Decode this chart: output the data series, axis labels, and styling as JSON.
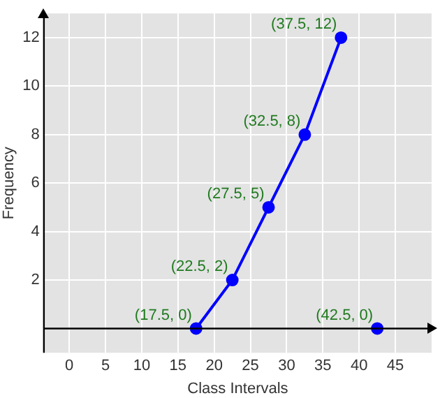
{
  "chart_data": {
    "type": "line",
    "xlabel": "Class Intervals",
    "ylabel": "Frequency",
    "xlim": [
      -3.5,
      50
    ],
    "xticks": [
      0,
      5,
      10,
      15,
      20,
      25,
      30,
      35,
      40,
      45
    ],
    "ylim": [
      -1,
      13
    ],
    "yticks": [
      {
        "value": 0,
        "label": null
      },
      2,
      4,
      6,
      8,
      10,
      12
    ],
    "grid": true,
    "marker": "circle",
    "line_style": "solid",
    "series": [
      {
        "type": "line",
        "color": "#0000ff",
        "x": [
          17.5,
          22.5,
          27.5,
          32.5,
          37.5
        ],
        "values": [
          0,
          2,
          5,
          8,
          12
        ]
      },
      {
        "type": "scatter",
        "color": "#0000ff",
        "x": [
          42.5
        ],
        "values": [
          0
        ]
      }
    ],
    "annotations": [
      {
        "text": "(17.5, 0)",
        "x": 17.5,
        "y": 0
      },
      {
        "text": "(22.5, 2)",
        "x": 22.5,
        "y": 2
      },
      {
        "text": "(27.5, 5)",
        "x": 27.5,
        "y": 5
      },
      {
        "text": "(32.5, 8)",
        "x": 32.5,
        "y": 8
      },
      {
        "text": "(37.5, 12)",
        "x": 37.5,
        "y": 12
      },
      {
        "text": "(42.5, 0)",
        "x": 42.5,
        "y": 0
      }
    ]
  }
}
